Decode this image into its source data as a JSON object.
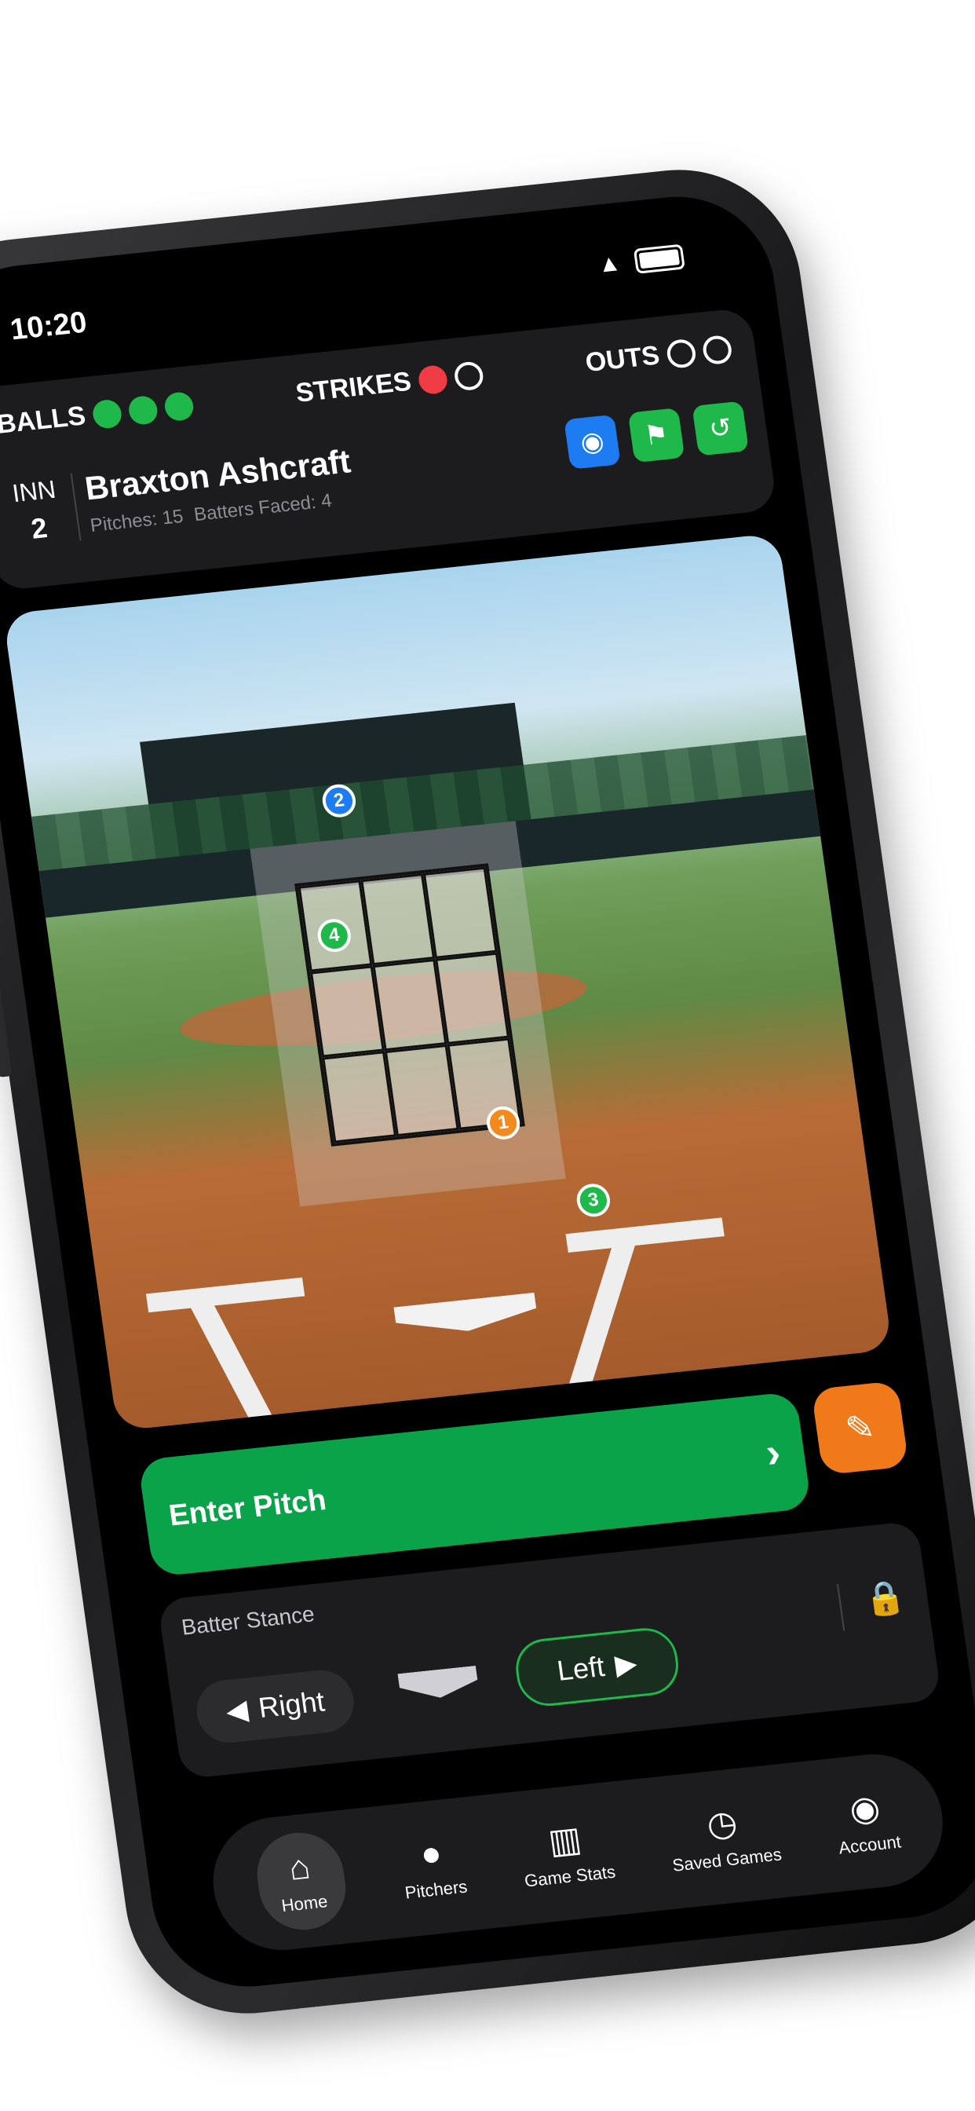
{
  "status": {
    "time": "10:20"
  },
  "scoreboard": {
    "balls_label": "BALLS",
    "strikes_label": "STRIKES",
    "outs_label": "OUTS",
    "balls": 3,
    "strikes": 1,
    "outs": 0,
    "inning_label": "INN",
    "inning": "2",
    "pitcher_name": "Braxton Ashcraft",
    "pitches": "Pitches: 15",
    "batters_faced": "Batters Faced: 4"
  },
  "field": {
    "markers": [
      "1",
      "2",
      "3",
      "4"
    ]
  },
  "actions": {
    "enter_pitch": "Enter Pitch",
    "chevron": "›",
    "edit_icon": "edit-icon"
  },
  "stance": {
    "title": "Batter Stance",
    "right": "Right",
    "left": "Left",
    "selected": "Left"
  },
  "tabs": [
    {
      "label": "Home",
      "icon": "home-icon",
      "active": true
    },
    {
      "label": "Pitchers",
      "icon": "person-icon"
    },
    {
      "label": "Game Stats",
      "icon": "chart-icon"
    },
    {
      "label": "Saved Games",
      "icon": "history-icon"
    },
    {
      "label": "Account",
      "icon": "account-icon"
    }
  ],
  "colors": {
    "green": "#1fb84a",
    "red": "#ef3b44",
    "blue": "#1d7cf2",
    "orange": "#f07a1a"
  }
}
